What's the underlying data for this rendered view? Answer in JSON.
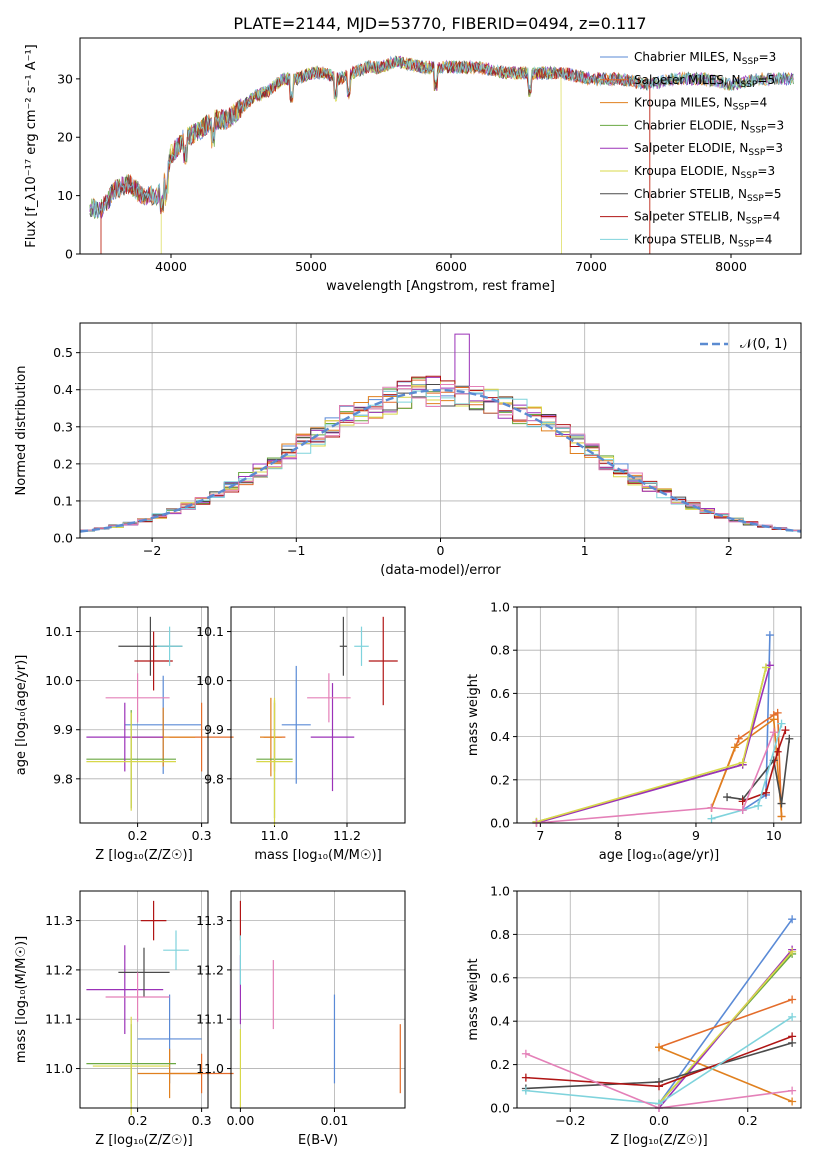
{
  "figure": {
    "title": "PLATE=2144, MJD=53770, FIBERID=0494, z=0.117"
  },
  "colors": {
    "Chabrier MILES": "#5a8ad6",
    "Salpeter MILES": "#e36c2a",
    "Kroupa MILES": "#e0801f",
    "Chabrier ELODIE": "#6aa842",
    "Salpeter ELODIE": "#9b32b8",
    "Kroupa ELODIE": "#d8d84a",
    "Chabrier STELIB": "#4a4a4a",
    "Salpeter STELIB": "#b01515",
    "Kroupa STELIB": "#7fd3dc",
    "normal": "#5b8bd1",
    "pink": "#e480b8"
  },
  "chart_data": [
    {
      "type": "line",
      "name": "spectrum",
      "xlabel": "wavelength [Angstrom, rest frame]",
      "ylabel": "Flux [f_λ10⁻¹⁷ erg cm⁻² s⁻¹ A⁻¹]",
      "xlim": [
        3350,
        8500
      ],
      "ylim": [
        0,
        37
      ],
      "xticks": [
        4000,
        5000,
        6000,
        7000,
        8000
      ],
      "yticks": [
        0,
        10,
        20,
        30
      ],
      "legend": [
        "Chabrier MILES, N_SSP=3",
        "Salpeter MILES, N_SSP=5",
        "Kroupa MILES, N_SSP=4",
        "Chabrier ELODIE, N_SSP=3",
        "Salpeter ELODIE, N_SSP=3",
        "Kroupa ELODIE, N_SSP=3",
        "Chabrier STELIB, N_SSP=5",
        "Salpeter STELIB, N_SSP=4",
        "Kroupa STELIB, N_SSP=4"
      ],
      "legend_position": "right",
      "continuum": {
        "x": [
          3400,
          3500,
          3600,
          3700,
          3800,
          3900,
          3950,
          4000,
          4100,
          4200,
          4300,
          4400,
          4500,
          4600,
          4700,
          4800,
          4900,
          5000,
          5100,
          5200,
          5300,
          5400,
          5500,
          5600,
          5800,
          6000,
          6200,
          6400,
          6600,
          6800,
          7000,
          7200,
          7400,
          7600,
          7800,
          8000,
          8200,
          8450
        ],
        "y": [
          8,
          7.5,
          11,
          12,
          10,
          10,
          12,
          17,
          20,
          21,
          23,
          23,
          25,
          27,
          28,
          30,
          30,
          31,
          31,
          30,
          31,
          32,
          32,
          33,
          32,
          32,
          32,
          31,
          31,
          31,
          30,
          30,
          29,
          30,
          30,
          29,
          30,
          30
        ]
      },
      "cutoffs": {
        "Salpeter MILES": [
          3500,
          7420
        ],
        "Kroupa ELODIE": [
          3930,
          6790
        ],
        "Salpeter STELIB": [
          3500,
          7420
        ]
      }
    },
    {
      "type": "histogram",
      "name": "residuals",
      "xlabel": "(data-model)/error",
      "ylabel": "Normed distribution",
      "xlim": [
        -2.5,
        2.5
      ],
      "ylim": [
        0,
        0.58
      ],
      "xticks": [
        -2,
        -1,
        0,
        1,
        2
      ],
      "yticks": [
        0,
        0.1,
        0.2,
        0.3,
        0.4,
        0.5
      ],
      "legend": [
        "𝒩(0, 1)"
      ],
      "legend_position": "top-right",
      "grid": true,
      "bin_width": 0.1
    },
    {
      "type": "scatter",
      "name": "age-vs-Z",
      "xlabel": "Z [log₁₀(Z/Z☉)]",
      "ylabel": "age  [log₁₀(age/yr)]",
      "xlim": [
        0.11,
        0.31
      ],
      "ylim": [
        9.71,
        10.15
      ],
      "xticks": [
        0.2,
        0.3
      ],
      "yticks": [
        9.8,
        9.9,
        10.0,
        10.1
      ],
      "grid": true,
      "points": [
        {
          "s": "Chabrier MILES",
          "x": 0.24,
          "y": 9.91,
          "xerr": 0.06,
          "yerr": 0.1
        },
        {
          "s": "Salpeter MILES",
          "x": 0.3,
          "y": 9.885,
          "xerr": 0.05,
          "yerr": 0.07
        },
        {
          "s": "Kroupa MILES",
          "x": 0.24,
          "y": 9.885,
          "xerr": 0.05,
          "yerr": 0.06
        },
        {
          "s": "Chabrier ELODIE",
          "x": 0.19,
          "y": 9.84,
          "xerr": 0.07,
          "yerr": 0.1
        },
        {
          "s": "Salpeter ELODIE",
          "x": 0.18,
          "y": 9.885,
          "xerr": 0.06,
          "yerr": 0.07
        },
        {
          "s": "Kroupa ELODIE",
          "x": 0.19,
          "y": 9.835,
          "xerr": 0.07,
          "yerr": 0.1
        },
        {
          "s": "Chabrier STELIB",
          "x": 0.22,
          "y": 10.07,
          "xerr": 0.05,
          "yerr": 0.06
        },
        {
          "s": "Salpeter STELIB",
          "x": 0.225,
          "y": 10.04,
          "xerr": 0.03,
          "yerr": 0.06
        },
        {
          "s": "Kroupa STELIB",
          "x": 0.25,
          "y": 10.07,
          "xerr": 0.02,
          "yerr": 0.04
        },
        {
          "s": "pink",
          "x": 0.2,
          "y": 9.965,
          "xerr": 0.05,
          "yerr": 0.05
        }
      ]
    },
    {
      "type": "scatter",
      "name": "age-vs-mass",
      "xlabel": "mass [log₁₀(M/M☉)]",
      "ylabel": "",
      "xlim": [
        10.88,
        11.36
      ],
      "ylim": [
        9.71,
        10.15
      ],
      "xticks": [
        11.0,
        11.2
      ],
      "yticks": [
        9.8,
        9.9,
        10.0,
        10.1
      ],
      "grid": true,
      "points": [
        {
          "s": "Chabrier MILES",
          "x": 11.06,
          "y": 9.91,
          "xerr": 0.04,
          "yerr": 0.12
        },
        {
          "s": "Salpeter MILES",
          "x": 11.0,
          "y": 9.885,
          "xerr": 0.03,
          "yerr": 0.07
        },
        {
          "s": "Kroupa MILES",
          "x": 10.99,
          "y": 9.885,
          "xerr": 0.03,
          "yerr": 0.08
        },
        {
          "s": "Chabrier ELODIE",
          "x": 11.0,
          "y": 9.84,
          "xerr": 0.05,
          "yerr": 0.12
        },
        {
          "s": "Salpeter ELODIE",
          "x": 11.16,
          "y": 9.885,
          "xerr": 0.06,
          "yerr": 0.11
        },
        {
          "s": "Kroupa ELODIE",
          "x": 11.0,
          "y": 9.835,
          "xerr": 0.05,
          "yerr": 0.13
        },
        {
          "s": "Chabrier STELIB",
          "x": 11.19,
          "y": 10.07,
          "xerr": 0.01,
          "yerr": 0.06
        },
        {
          "s": "Salpeter STELIB",
          "x": 11.3,
          "y": 10.04,
          "xerr": 0.04,
          "yerr": 0.09
        },
        {
          "s": "Kroupa STELIB",
          "x": 11.24,
          "y": 10.07,
          "xerr": 0.02,
          "yerr": 0.04
        },
        {
          "s": "pink",
          "x": 11.15,
          "y": 9.965,
          "xerr": 0.06,
          "yerr": 0.05
        }
      ]
    },
    {
      "type": "line",
      "name": "mass-weight-vs-age",
      "xlabel": "age  [log₁₀(age/yr)]",
      "ylabel": "mass weight",
      "xlim": [
        6.7,
        10.35
      ],
      "ylim": [
        0,
        1.0
      ],
      "xticks": [
        7,
        8,
        9,
        10
      ],
      "yticks": [
        0,
        0.2,
        0.4,
        0.6,
        0.8,
        1.0
      ],
      "grid": true,
      "series": [
        {
          "s": "Chabrier MILES",
          "x": [
            9.6,
            9.9,
            9.95
          ],
          "y": [
            0.06,
            0.13,
            0.87
          ]
        },
        {
          "s": "Salpeter MILES",
          "x": [
            9.2,
            9.55,
            10.0,
            10.05,
            10.1
          ],
          "y": [
            0.07,
            0.39,
            0.5,
            0.51,
            0.03
          ]
        },
        {
          "s": "Kroupa MILES",
          "x": [
            9.2,
            9.5,
            10.0,
            10.1
          ],
          "y": [
            0.07,
            0.35,
            0.48,
            0.03
          ]
        },
        {
          "s": "Chabrier ELODIE",
          "x": 6.95,
          "y": 0,
          "xv": [
            6.95,
            9.6,
            9.9
          ],
          "yv": [
            0.005,
            0.27,
            0.72
          ]
        },
        {
          "s": "Salpeter ELODIE",
          "x": [
            6.95,
            9.6,
            9.95
          ],
          "y": [
            0.0,
            0.27,
            0.73
          ]
        },
        {
          "s": "Kroupa ELODIE",
          "x": [
            6.95,
            9.6,
            9.9
          ],
          "y": [
            0.005,
            0.28,
            0.72
          ]
        },
        {
          "s": "Chabrier STELIB",
          "x": [
            9.4,
            9.6,
            10.0,
            10.1,
            10.2
          ],
          "y": [
            0.12,
            0.11,
            0.29,
            0.09,
            0.39
          ]
        },
        {
          "s": "Salpeter STELIB",
          "x": [
            9.6,
            9.9,
            10.05,
            10.15
          ],
          "y": [
            0.1,
            0.14,
            0.33,
            0.43
          ]
        },
        {
          "s": "Kroupa STELIB",
          "x": [
            9.2,
            9.8,
            10.1
          ],
          "y": [
            0.02,
            0.08,
            0.46
          ]
        },
        {
          "s": "pink",
          "x": [
            6.95,
            9.2,
            9.6,
            10.0
          ],
          "y": [
            0.0,
            0.07,
            0.06,
            0.42
          ]
        }
      ]
    },
    {
      "type": "scatter",
      "name": "mass-vs-Z",
      "xlabel": "Z [log₁₀(Z/Z☉)]",
      "ylabel": "mass [log₁₀(M/M☉)]",
      "xlim": [
        0.11,
        0.31
      ],
      "ylim": [
        10.92,
        11.36
      ],
      "xticks": [
        0.2,
        0.3
      ],
      "yticks": [
        11.0,
        11.1,
        11.2,
        11.3
      ],
      "grid": true,
      "points": [
        {
          "s": "Chabrier MILES",
          "x": 0.25,
          "y": 11.06,
          "xerr": 0.05,
          "yerr": 0.09
        },
        {
          "s": "Salpeter MILES",
          "x": 0.3,
          "y": 10.99,
          "xerr": 0.05,
          "yerr": 0.04
        },
        {
          "s": "Kroupa MILES",
          "x": 0.25,
          "y": 10.99,
          "xerr": 0.05,
          "yerr": 0.05
        },
        {
          "s": "Chabrier ELODIE",
          "x": 0.19,
          "y": 11.01,
          "xerr": 0.07,
          "yerr": 0.08
        },
        {
          "s": "Salpeter ELODIE",
          "x": 0.18,
          "y": 11.16,
          "xerr": 0.06,
          "yerr": 0.09
        },
        {
          "s": "Kroupa ELODIE",
          "x": 0.19,
          "y": 11.005,
          "xerr": 0.06,
          "yerr": 0.1
        },
        {
          "s": "Chabrier STELIB",
          "x": 0.21,
          "y": 11.195,
          "xerr": 0.04,
          "yerr": 0.05
        },
        {
          "s": "Salpeter STELIB",
          "x": 0.225,
          "y": 11.3,
          "xerr": 0.02,
          "yerr": 0.04
        },
        {
          "s": "Kroupa STELIB",
          "x": 0.26,
          "y": 11.24,
          "xerr": 0.02,
          "yerr": 0.04
        },
        {
          "s": "pink",
          "x": 0.2,
          "y": 11.145,
          "xerr": 0.05,
          "yerr": 0.05
        }
      ]
    },
    {
      "type": "scatter",
      "name": "mass-vs-EBV",
      "xlabel": "E(B-V)",
      "ylabel": "",
      "xlim": [
        -0.001,
        0.0175
      ],
      "ylim": [
        10.92,
        11.36
      ],
      "xticks": [
        0.0,
        0.01
      ],
      "yticks": [
        11.0,
        11.1,
        11.2,
        11.3
      ],
      "grid": true,
      "points": [
        {
          "s": "Chabrier MILES",
          "x": 0.01,
          "y": 11.06,
          "yerr": 0.09
        },
        {
          "s": "Salpeter MILES",
          "x": 0.017,
          "y": 11.02,
          "yerr": 0.07
        },
        {
          "s": "Salpeter ELODIE",
          "x": 0.0,
          "y": 11.16,
          "yerr": 0.07
        },
        {
          "s": "Kroupa ELODIE",
          "x": 0.0,
          "y": 11.0,
          "yerr": 0.08
        },
        {
          "s": "Salpeter STELIB",
          "x": 0.0,
          "y": 11.3,
          "yerr": 0.04
        },
        {
          "s": "Kroupa STELIB",
          "x": 0.0,
          "y": 11.22,
          "yerr": 0.05
        },
        {
          "s": "pink",
          "x": 0.0035,
          "y": 11.15,
          "yerr": 0.07
        }
      ]
    },
    {
      "type": "line",
      "name": "mass-weight-vs-Z",
      "xlabel": "Z [log₁₀(Z/Z☉)]",
      "ylabel": "mass weight",
      "xlim": [
        -0.32,
        0.32
      ],
      "ylim": [
        0,
        1.0
      ],
      "xticks": [
        -0.2,
        0.0,
        0.2
      ],
      "yticks": [
        0,
        0.2,
        0.4,
        0.6,
        0.8,
        1.0
      ],
      "grid": true,
      "series": [
        {
          "s": "Chabrier MILES",
          "x": [
            0.0,
            0.3
          ],
          "y": [
            0.02,
            0.87
          ]
        },
        {
          "s": "Salpeter MILES",
          "x": [
            0.0,
            0.3
          ],
          "y": [
            0.28,
            0.5
          ]
        },
        {
          "s": "Kroupa MILES",
          "x": [
            0.0,
            0.3
          ],
          "y": [
            0.28,
            0.03
          ]
        },
        {
          "s": "Chabrier ELODIE",
          "x": [
            0.0,
            0.3
          ],
          "y": [
            0.02,
            0.71
          ]
        },
        {
          "s": "Salpeter ELODIE",
          "x": [
            0.0,
            0.3
          ],
          "y": [
            0.0,
            0.73
          ]
        },
        {
          "s": "Kroupa ELODIE",
          "x": [
            0.0,
            0.3
          ],
          "y": [
            0.02,
            0.72
          ]
        },
        {
          "s": "Chabrier STELIB",
          "x": [
            -0.3,
            0.0,
            0.3
          ],
          "y": [
            0.09,
            0.12,
            0.3
          ]
        },
        {
          "s": "Salpeter STELIB",
          "x": [
            -0.3,
            0.0,
            0.3
          ],
          "y": [
            0.14,
            0.1,
            0.33
          ]
        },
        {
          "s": "Kroupa STELIB",
          "x": [
            -0.3,
            0.0,
            0.3
          ],
          "y": [
            0.08,
            0.02,
            0.42
          ]
        },
        {
          "s": "pink",
          "x": [
            -0.3,
            0.0,
            0.3
          ],
          "y": [
            0.25,
            0.0,
            0.08
          ]
        }
      ]
    }
  ]
}
